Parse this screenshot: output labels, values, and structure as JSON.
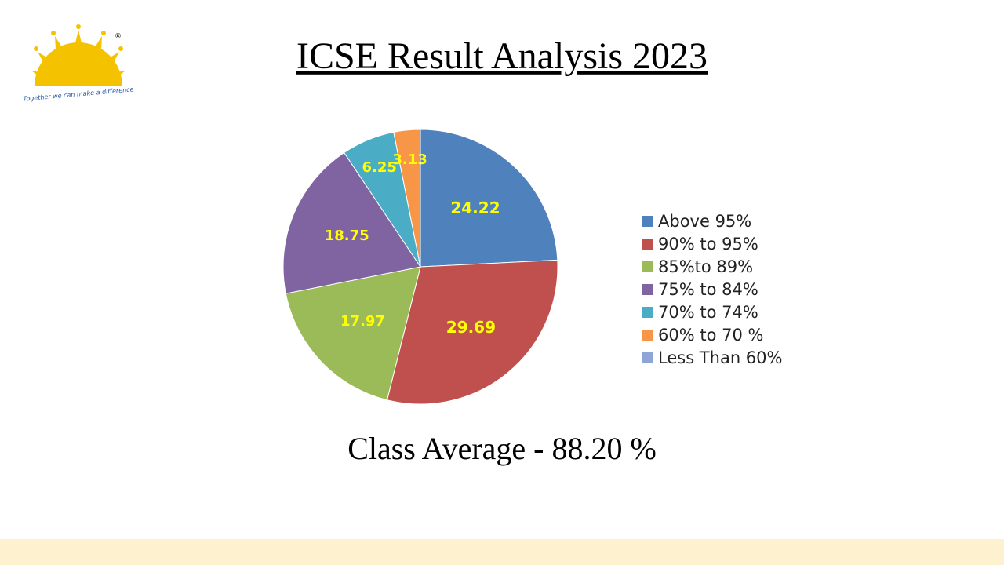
{
  "logo": {
    "tagline": "Together we can make a difference",
    "mark": "®"
  },
  "chart_data": {
    "type": "pie",
    "title": "ICSE Result Analysis 2023",
    "categories": [
      "Above 95%",
      "90% to 95%",
      "85%to 89%",
      "75% to 84%",
      "70% to 74%",
      "60% to 70 %",
      "Less Than 60%"
    ],
    "values": [
      24.22,
      29.69,
      17.97,
      18.75,
      6.25,
      3.13,
      0
    ],
    "colors": [
      "#4f81bd",
      "#c0504d",
      "#9bbb59",
      "#8064a2",
      "#4bacc6",
      "#f79646",
      "#8ea5d8"
    ],
    "legend": "right",
    "annotation": "Class Average - 88.20 %"
  }
}
